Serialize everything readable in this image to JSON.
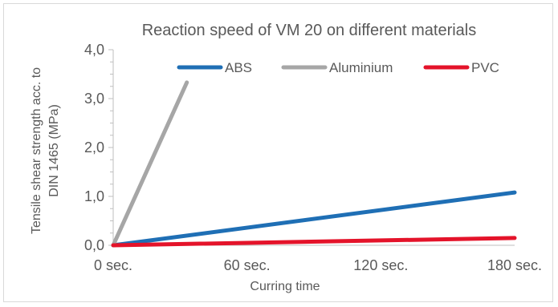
{
  "chart_data": {
    "type": "line",
    "title": "Reaction speed of VM 20 on different materials",
    "xlabel": "Curring time",
    "ylabel_lines": [
      "Tensile shear strength acc. to",
      "DIN 1465 (MPa)"
    ],
    "x_ticks": [
      {
        "value": 0,
        "label": "0 sec."
      },
      {
        "value": 60,
        "label": "60 sec."
      },
      {
        "value": 120,
        "label": "120 sec."
      },
      {
        "value": 180,
        "label": "180 sec."
      }
    ],
    "y_ticks": [
      {
        "value": 0,
        "label": "0,0"
      },
      {
        "value": 1,
        "label": "1,0"
      },
      {
        "value": 2,
        "label": "2,0"
      },
      {
        "value": 3,
        "label": "3,0"
      },
      {
        "value": 4,
        "label": "4,0"
      }
    ],
    "xlim": [
      0,
      180
    ],
    "ylim": [
      0,
      4
    ],
    "grid": false,
    "legend_position": "top-right",
    "series": [
      {
        "name": "ABS",
        "color": "#1f6fb5",
        "x": [
          0,
          180
        ],
        "y": [
          0,
          1.08
        ]
      },
      {
        "name": "Aluminium",
        "color": "#a6a6a6",
        "x": [
          0,
          33
        ],
        "y": [
          0,
          3.33
        ]
      },
      {
        "name": "PVC",
        "color": "#e4132a",
        "x": [
          0,
          180
        ],
        "y": [
          0,
          0.15
        ]
      }
    ]
  }
}
